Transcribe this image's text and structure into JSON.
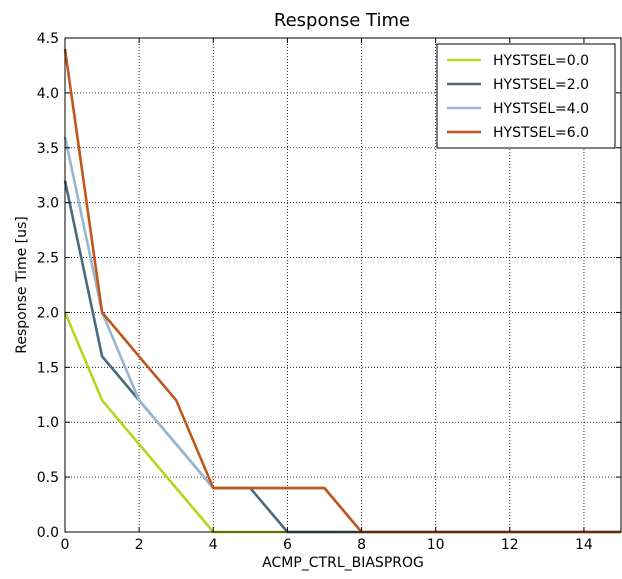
{
  "chart_data": {
    "type": "line",
    "title": "Response Time",
    "xlabel": "ACMP_CTRL_BIASPROG",
    "ylabel": "Response Time [us]",
    "xlim": [
      0,
      15
    ],
    "ylim": [
      0,
      4.5
    ],
    "xticks": [
      0,
      2,
      4,
      6,
      8,
      10,
      12,
      14
    ],
    "yticks": [
      0.0,
      0.5,
      1.0,
      1.5,
      2.0,
      2.5,
      3.0,
      3.5,
      4.0,
      4.5
    ],
    "xtick_labels": [
      "0",
      "2",
      "4",
      "6",
      "8",
      "10",
      "12",
      "14"
    ],
    "ytick_labels": [
      "0.0",
      "0.5",
      "1.0",
      "1.5",
      "2.0",
      "2.5",
      "3.0",
      "3.5",
      "4.0",
      "4.5"
    ],
    "grid": true,
    "legend_position": "top-right",
    "x": [
      0,
      1,
      2,
      3,
      4,
      5,
      6,
      7,
      8,
      9,
      10,
      11,
      12,
      13,
      14,
      15
    ],
    "series": [
      {
        "name": "HYSTSEL=0.0",
        "color": "#bcd31b",
        "values": [
          2.0,
          1.2,
          0.8,
          0.4,
          0.0,
          0.0,
          0.0,
          0.0,
          0.0,
          0.0,
          0.0,
          0.0,
          0.0,
          0.0,
          0.0,
          0.0
        ]
      },
      {
        "name": "HYSTSEL=2.0",
        "color": "#4a6a7f",
        "values": [
          3.2,
          1.6,
          1.2,
          0.8,
          0.4,
          0.4,
          0.0,
          0.0,
          0.0,
          0.0,
          0.0,
          0.0,
          0.0,
          0.0,
          0.0,
          0.0
        ]
      },
      {
        "name": "HYSTSEL=4.0",
        "color": "#97b6d0",
        "values": [
          3.6,
          2.0,
          1.2,
          0.8,
          0.4,
          0.4,
          0.4,
          0.4,
          0.0,
          0.0,
          0.0,
          0.0,
          0.0,
          0.0,
          0.0,
          0.0
        ]
      },
      {
        "name": "HYSTSEL=6.0",
        "color": "#c2561a",
        "values": [
          4.4,
          2.0,
          1.6,
          1.2,
          0.4,
          0.4,
          0.4,
          0.4,
          0.0,
          0.0,
          0.0,
          0.0,
          0.0,
          0.0,
          0.0,
          0.0
        ]
      }
    ]
  }
}
